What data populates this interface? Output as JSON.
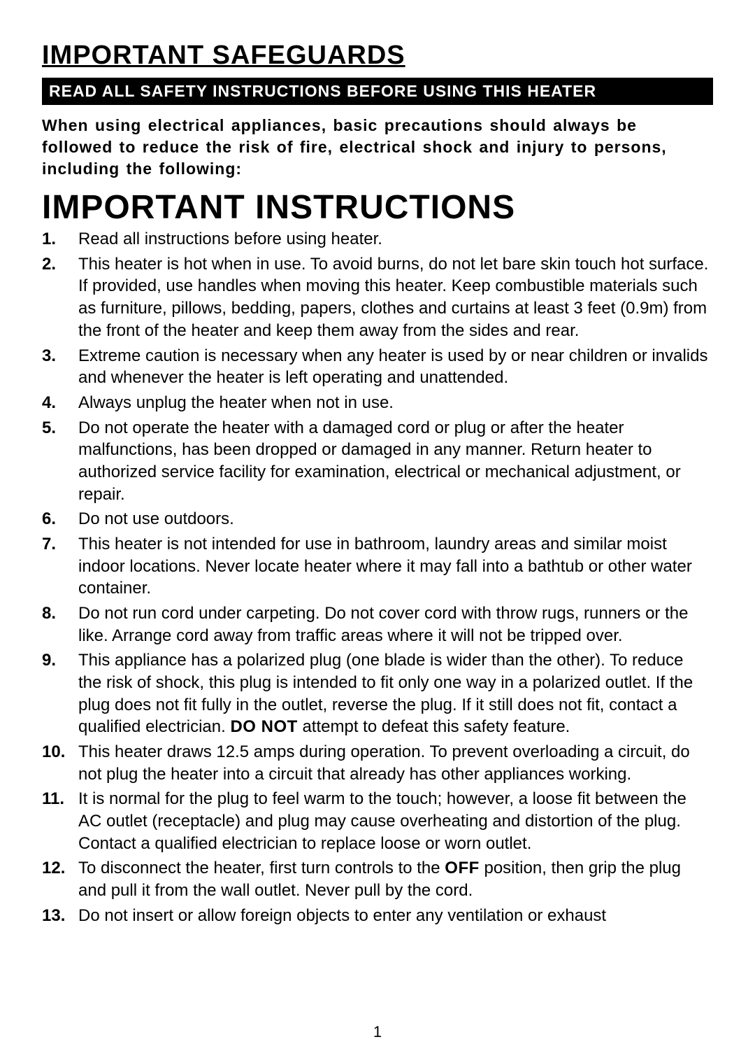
{
  "colors": {
    "page_bg": "#ffffff",
    "text": "#000000",
    "bar_bg": "#000000",
    "bar_text": "#ffffff"
  },
  "typography": {
    "body_font": "Arial, Helvetica, sans-serif",
    "safeguards_heading_size_pt": 29,
    "black_bar_size_pt": 17,
    "intro_size_pt": 17,
    "instructions_heading_size_pt": 36,
    "list_size_pt": 18
  },
  "safeguards_heading": "IMPORTANT SAFEGUARDS",
  "black_bar_text": "READ ALL SAFETY INSTRUCTIONS BEFORE USING THIS HEATER",
  "intro_paragraph": "When using electrical appliances, basic precautions should always be followed to reduce the risk of fire, electrical shock and injury to persons, including the following:",
  "instructions_heading": "IMPORTANT INSTRUCTIONS",
  "instructions": [
    {
      "text_before": "Read all instructions before using heater.",
      "bold": null,
      "text_after": ""
    },
    {
      "text_before": "This heater is hot when in use. To avoid burns, do not let bare skin touch hot surface. If provided, use handles when moving this heater. Keep combustible materials such as furniture, pillows, bedding, papers, clothes and curtains at least 3 feet (0.9m) from the front of the heater and keep them away from the sides and rear.",
      "bold": null,
      "text_after": ""
    },
    {
      "text_before": "Extreme caution is necessary when any heater is used by or near children or invalids and whenever the heater is left operating and unattended.",
      "bold": null,
      "text_after": ""
    },
    {
      "text_before": "Always unplug the heater when not in use.",
      "bold": null,
      "text_after": ""
    },
    {
      "text_before": "Do not operate the heater with a damaged cord or plug or after the heater malfunctions, has been dropped or damaged in any manner. Return heater to authorized service facility for examination, electrical or mechanical adjustment, or repair.",
      "bold": null,
      "text_after": ""
    },
    {
      "text_before": "Do not use outdoors.",
      "bold": null,
      "text_after": ""
    },
    {
      "text_before": "This heater is not intended for use in bathroom, laundry areas and similar moist indoor locations. Never locate heater where it may fall into a bathtub or other water container.",
      "bold": null,
      "text_after": ""
    },
    {
      "text_before": "Do not run cord under carpeting. Do not cover cord with throw rugs, runners or the like. Arrange cord away from traffic areas where it will not be tripped over.",
      "bold": null,
      "text_after": ""
    },
    {
      "text_before": "This appliance has a polarized plug (one blade is wider than the other). To reduce the risk of shock, this plug is intended to fit only one way in a polarized outlet. If the plug does not fit fully in the outlet, reverse the plug. If it still does not fit, contact a qualified electrician. ",
      "bold": "DO NOT",
      "text_after": " attempt to defeat this safety feature."
    },
    {
      "text_before": "This heater draws 12.5 amps during operation. To prevent overloading a circuit, do not plug the heater into a circuit that already has other appliances working.",
      "bold": null,
      "text_after": ""
    },
    {
      "text_before": "It is normal for the plug to feel warm to the touch; however, a loose fit between the AC outlet (receptacle) and plug may cause overheating and distortion of the plug. Contact a qualified electrician to replace loose or worn outlet.",
      "bold": null,
      "text_after": ""
    },
    {
      "text_before": "To disconnect the heater, first turn controls to the ",
      "bold": "OFF",
      "text_after": " position, then grip the plug and pull it from the wall outlet. Never pull by the cord."
    },
    {
      "text_before": "Do not insert or allow foreign objects to enter any ventilation or exhaust",
      "bold": null,
      "text_after": ""
    }
  ],
  "page_number": "1"
}
